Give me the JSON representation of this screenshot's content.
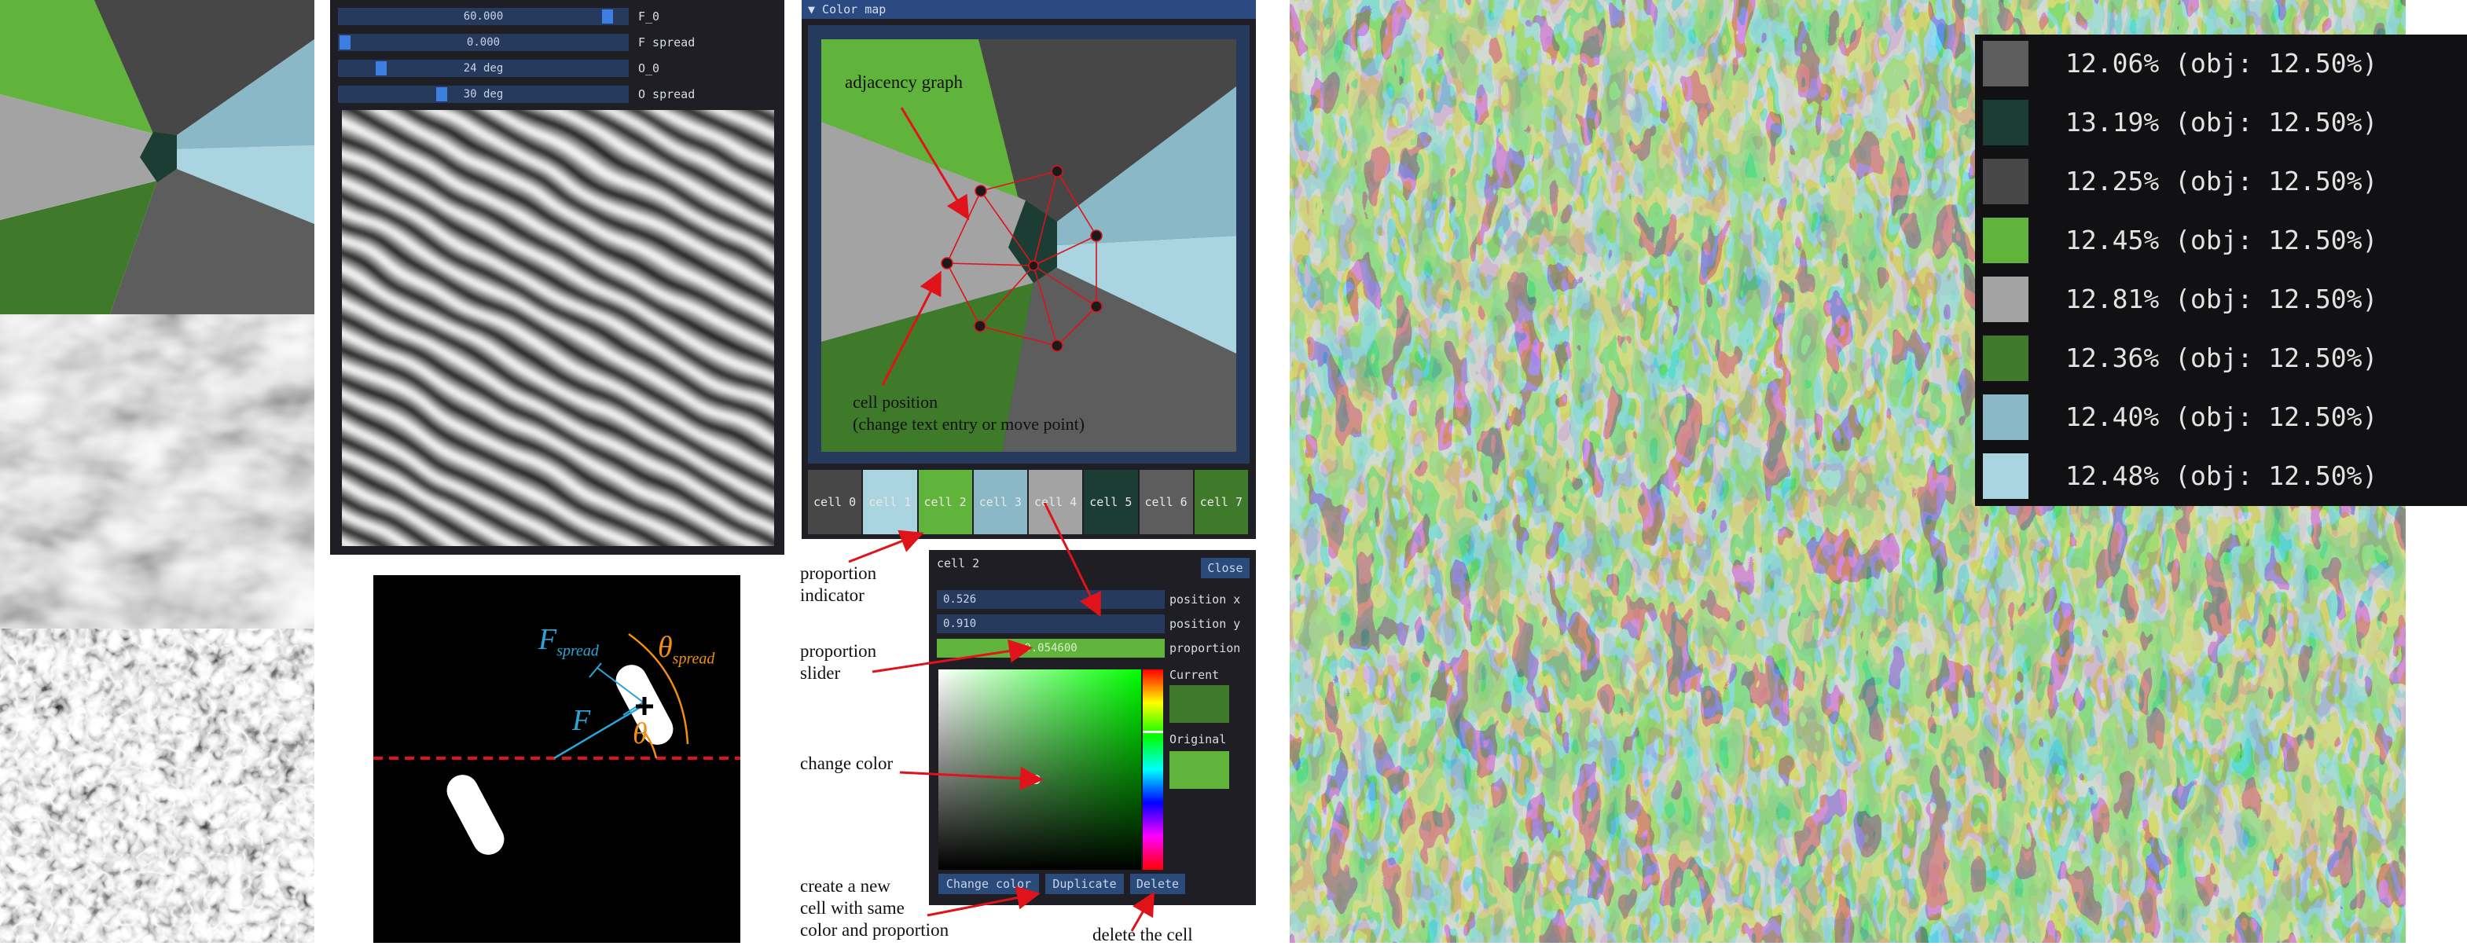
{
  "colors": {
    "c0": "#5d5d5d",
    "c1": "#1c3d33",
    "c2": "#474747",
    "c3": "#61b43b",
    "c4": "#a3a3a3",
    "c5": "#3f7a2b",
    "c6": "#8ab8c6",
    "c7": "#a9d4e0",
    "gui_bg": "#1e1e24",
    "frame": "#253a5c",
    "accent_red": "#e0121a",
    "cyan_label": "#29a6d6",
    "orange_label": "#f0900f"
  },
  "orientation_panel": {
    "sliders": [
      {
        "value": "60.000",
        "label": "F_0",
        "fill": 0.95
      },
      {
        "value": "0.000",
        "label": "F spread",
        "fill": 0.0
      },
      {
        "value": "24 deg",
        "label": "O_0",
        "fill": 0.13
      },
      {
        "value": "30 deg",
        "label": "O spread",
        "fill": 0.35
      }
    ]
  },
  "spectrum_diagram": {
    "labels": {
      "f_spread": "F",
      "f_spread_sub": "spread",
      "f": "F",
      "theta_spread": "θ",
      "theta_spread_sub": "spread",
      "theta": "θ"
    }
  },
  "color_map": {
    "header": "▼ Color map",
    "annotations": {
      "adjacency_graph": "adjacency graph",
      "cell_position_1": "cell position",
      "cell_position_2": "(change text entry or move point)"
    },
    "cells": [
      "cell 0",
      "cell 1",
      "cell 2",
      "cell 3",
      "cell 4",
      "cell 5",
      "cell 6",
      "cell 7"
    ]
  },
  "cell_editor": {
    "title": "cell 2",
    "close": "Close",
    "position_x_value": "0.526",
    "position_x_label": "position x",
    "position_y_value": "0.910",
    "position_y_label": "position y",
    "proportion_value": "0.054600",
    "proportion_label": "proportion",
    "proportion_fill": 1.0,
    "current_label": "Current",
    "original_label": "Original",
    "change_color": "Change color",
    "duplicate": "Duplicate",
    "delete": "Delete"
  },
  "side_annotations": {
    "proportion_indicator_1": "proportion",
    "proportion_indicator_2": "indicator",
    "proportion_slider_1": "proportion",
    "proportion_slider_2": "slider",
    "change_color": "change color",
    "create_cell_1": "create a new",
    "create_cell_2": "cell with same",
    "create_cell_3": "color and proportion",
    "delete_cell": "delete the cell"
  },
  "legend": [
    {
      "pct": "12.06%",
      "obj": "(obj: 12.50%)",
      "color": "#5d5d5d"
    },
    {
      "pct": "13.19%",
      "obj": "(obj: 12.50%)",
      "color": "#1c3d33"
    },
    {
      "pct": "12.25%",
      "obj": "(obj: 12.50%)",
      "color": "#474747"
    },
    {
      "pct": "12.45%",
      "obj": "(obj: 12.50%)",
      "color": "#61b43b"
    },
    {
      "pct": "12.81%",
      "obj": "(obj: 12.50%)",
      "color": "#a3a3a3"
    },
    {
      "pct": "12.36%",
      "obj": "(obj: 12.50%)",
      "color": "#3f7a2b"
    },
    {
      "pct": "12.40%",
      "obj": "(obj: 12.50%)",
      "color": "#8ab8c6"
    },
    {
      "pct": "12.48%",
      "obj": "(obj: 12.50%)",
      "color": "#a9d4e0"
    }
  ]
}
